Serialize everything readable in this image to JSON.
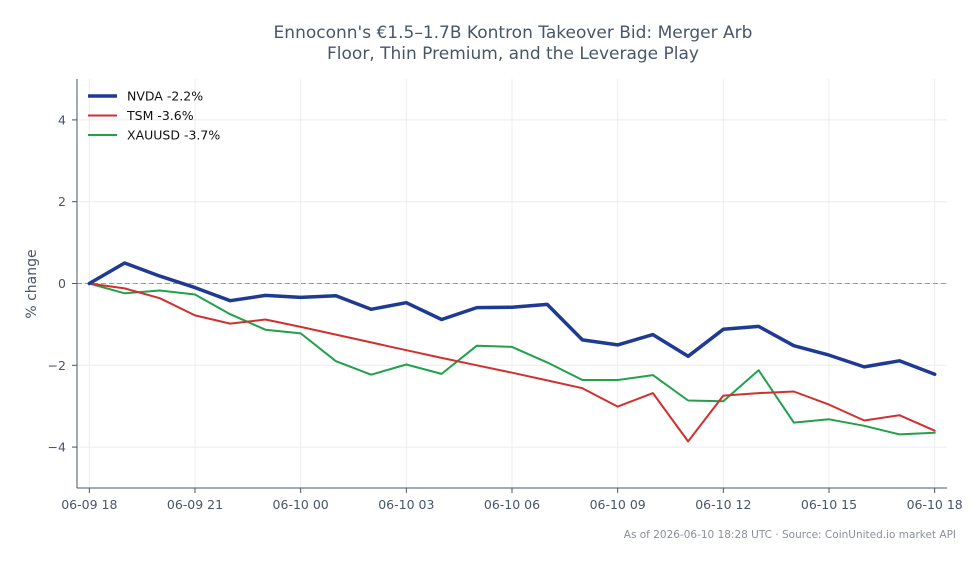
{
  "chart_data": {
    "type": "line",
    "title_lines": [
      "Ennoconn's €1.5–1.7B Kontron Takeover Bid: Merger Arb",
      "Floor, Thin Premium, and the Leverage Play"
    ],
    "xlabel": "",
    "ylabel": "% change",
    "ylim": [
      -5,
      5
    ],
    "yticks": [
      -4,
      -2,
      0,
      2,
      4
    ],
    "ytick_labels": [
      "−4",
      "−2",
      "0",
      "2",
      "4"
    ],
    "xlim": [
      -0.35,
      24.35
    ],
    "xticks": [
      0,
      3,
      6,
      9,
      12,
      15,
      18,
      21,
      24
    ],
    "xtick_labels": [
      "06-09 18",
      "06-09 21",
      "06-10 00",
      "06-10 03",
      "06-10 06",
      "06-10 09",
      "06-10 12",
      "06-10 15",
      "06-10 18"
    ],
    "x": [
      "06-09 18:00",
      "06-09 19:00",
      "06-09 20:00",
      "06-09 21:00",
      "06-09 22:00",
      "06-09 23:00",
      "06-10 00:00",
      "06-10 01:00",
      "06-10 02:00",
      "06-10 03:00",
      "06-10 04:00",
      "06-10 05:00",
      "06-10 06:00",
      "06-10 07:00",
      "06-10 08:00",
      "06-10 09:00",
      "06-10 10:00",
      "06-10 11:00",
      "06-10 12:00",
      "06-10 13:00",
      "06-10 14:00",
      "06-10 15:00",
      "06-10 16:00",
      "06-10 17:00",
      "06-10 18:00"
    ],
    "grid": true,
    "reference_line": 0,
    "legend_position": "top-left",
    "series": [
      {
        "name": "NVDA -2.2%",
        "color": "#1f3a93",
        "width": 3.5,
        "values": [
          0.0,
          0.5,
          0.18,
          -0.1,
          -0.42,
          -0.29,
          -0.34,
          -0.3,
          -0.63,
          -0.47,
          -0.88,
          -0.59,
          -0.58,
          -0.51,
          -1.38,
          -1.5,
          -1.25,
          -1.78,
          -1.12,
          -1.05,
          -1.52,
          -1.75,
          -2.04,
          -1.89,
          -2.22
        ]
      },
      {
        "name": "TSM -3.6%",
        "color": "#d03030",
        "width": 2,
        "values": [
          0.0,
          -0.12,
          -0.36,
          -0.78,
          -0.98,
          -0.88,
          -1.06,
          -1.25,
          -1.44,
          -1.63,
          -1.82,
          -2.0,
          -2.18,
          -2.37,
          -2.56,
          -3.01,
          -2.68,
          -3.86,
          -2.74,
          -2.68,
          -2.64,
          -2.96,
          -3.35,
          -3.22,
          -3.6
        ]
      },
      {
        "name": "XAUUSD -3.7%",
        "color": "#22a04a",
        "width": 2,
        "values": [
          0.0,
          -0.24,
          -0.17,
          -0.27,
          -0.75,
          -1.13,
          -1.22,
          -1.9,
          -2.23,
          -1.98,
          -2.21,
          -1.52,
          -1.55,
          -1.93,
          -2.36,
          -2.36,
          -2.24,
          -2.86,
          -2.88,
          -2.12,
          -3.4,
          -3.32,
          -3.48,
          -3.69,
          -3.65
        ]
      }
    ]
  },
  "footer": "As of 2026-06-10 18:28 UTC · Source: CoinUnited.io market API"
}
